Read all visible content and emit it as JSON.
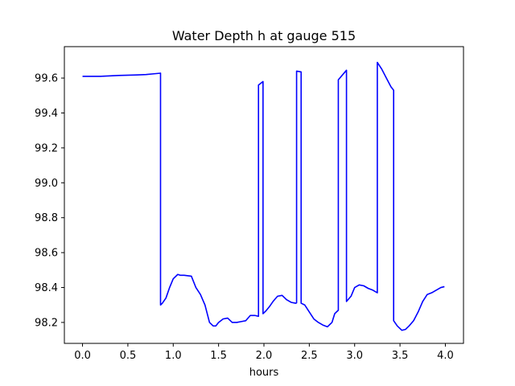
{
  "chart_data": {
    "type": "line",
    "title": "Water Depth h at gauge 515",
    "xlabel": "hours",
    "ylabel": "",
    "xlim": [
      -0.2,
      4.2
    ],
    "ylim": [
      98.08,
      99.78
    ],
    "xticks": [
      0.0,
      0.5,
      1.0,
      1.5,
      2.0,
      2.5,
      3.0,
      3.5,
      4.0
    ],
    "xtick_labels": [
      "0.0",
      "0.5",
      "1.0",
      "1.5",
      "2.0",
      "2.5",
      "3.0",
      "3.5",
      "4.0"
    ],
    "yticks": [
      98.2,
      98.4,
      98.6,
      98.8,
      99.0,
      99.2,
      99.4,
      99.6
    ],
    "ytick_labels": [
      "98.2",
      "98.4",
      "98.6",
      "98.8",
      "99.0",
      "99.2",
      "99.4",
      "99.6"
    ],
    "grid": false,
    "color": "#0000ff",
    "series": [
      {
        "x": [
          0.0,
          0.2,
          0.4,
          0.6,
          0.7,
          0.8,
          0.86,
          0.86,
          0.88,
          0.92,
          0.96,
          1.0,
          1.05,
          1.08,
          1.12,
          1.2,
          1.25,
          1.3,
          1.35,
          1.4,
          1.44,
          1.47,
          1.5,
          1.55,
          1.6,
          1.65,
          1.7,
          1.75,
          1.8,
          1.85,
          1.9,
          1.94,
          1.94,
          1.99,
          1.99,
          2.02,
          2.06,
          2.1,
          2.15,
          2.2,
          2.25,
          2.3,
          2.35,
          2.36,
          2.36,
          2.41,
          2.41,
          2.45,
          2.5,
          2.55,
          2.6,
          2.65,
          2.7,
          2.75,
          2.78,
          2.82,
          2.82,
          2.91,
          2.91,
          2.96,
          3.0,
          3.05,
          3.1,
          3.15,
          3.2,
          3.25,
          3.25,
          3.3,
          3.35,
          3.4,
          3.43,
          3.43,
          3.47,
          3.52,
          3.56,
          3.6,
          3.65,
          3.7,
          3.75,
          3.8,
          3.85,
          3.9,
          3.95,
          3.99
        ],
        "y": [
          99.61,
          99.61,
          99.615,
          99.618,
          99.62,
          99.625,
          99.628,
          98.3,
          98.31,
          98.34,
          98.4,
          98.45,
          98.475,
          98.47,
          98.47,
          98.465,
          98.4,
          98.36,
          98.3,
          98.2,
          98.18,
          98.18,
          98.2,
          98.22,
          98.225,
          98.2,
          98.2,
          98.205,
          98.21,
          98.24,
          98.24,
          98.235,
          99.56,
          99.58,
          98.25,
          98.265,
          98.29,
          98.32,
          98.35,
          98.355,
          98.33,
          98.315,
          98.31,
          98.312,
          99.64,
          99.635,
          98.31,
          98.3,
          98.26,
          98.22,
          98.2,
          98.185,
          98.175,
          98.2,
          98.25,
          98.27,
          99.59,
          99.645,
          98.32,
          98.35,
          98.4,
          98.415,
          98.41,
          98.395,
          98.385,
          98.37,
          99.69,
          99.65,
          99.6,
          99.55,
          99.53,
          98.21,
          98.18,
          98.155,
          98.16,
          98.18,
          98.21,
          98.26,
          98.32,
          98.36,
          98.37,
          98.385,
          98.4,
          98.405
        ]
      }
    ]
  }
}
